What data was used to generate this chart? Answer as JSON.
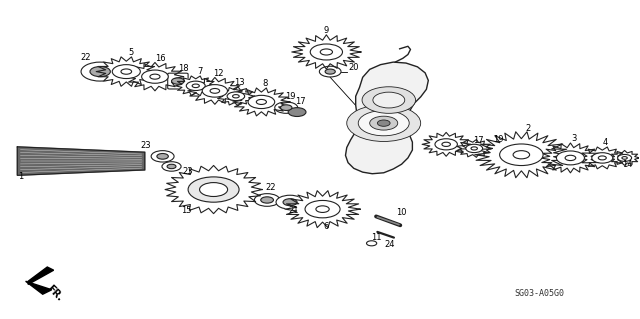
{
  "bg_color": "#ffffff",
  "fig_width": 6.4,
  "fig_height": 3.19,
  "dpi": 100,
  "diagram_code": "SG03-A05G0",
  "fr_label": "FR.",
  "gear_color": "#222222",
  "fill_color": "#ffffff",
  "lw": 0.8
}
